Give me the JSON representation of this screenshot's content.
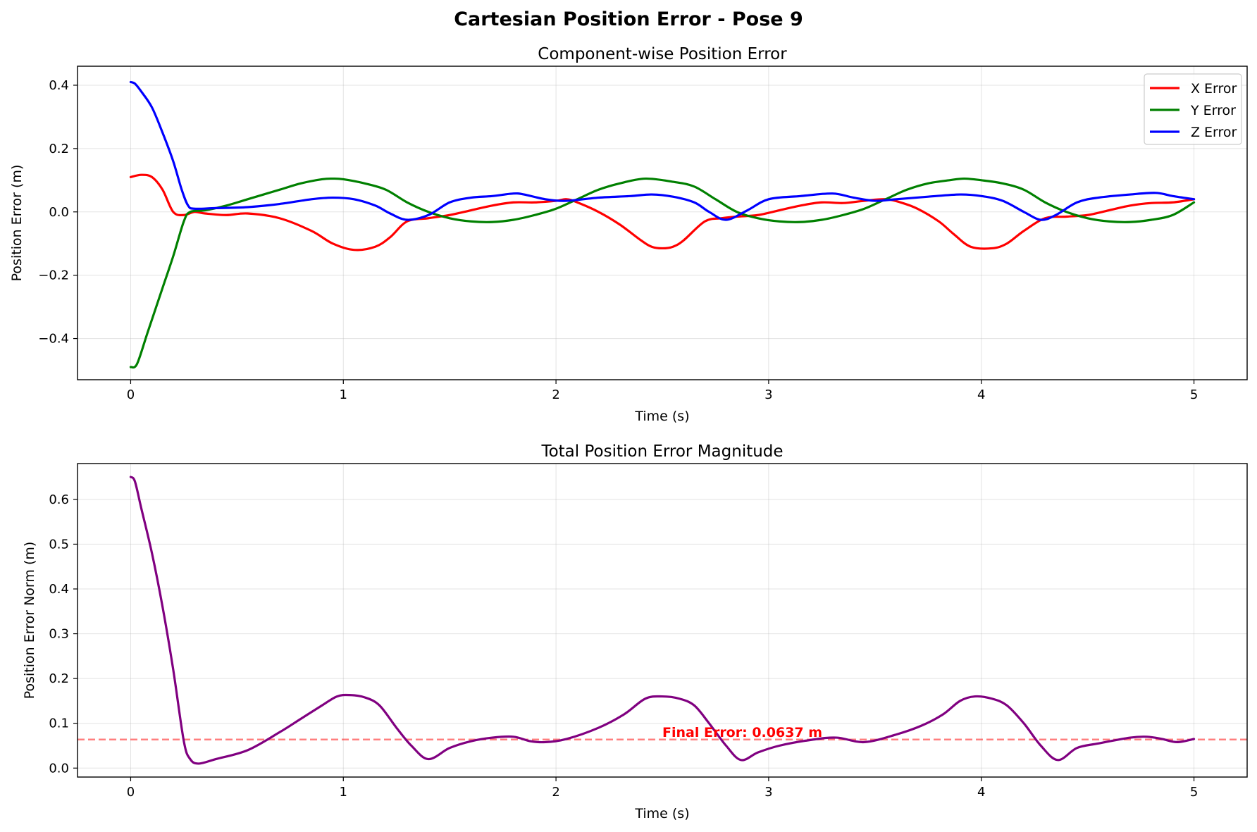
{
  "figure_title": "Cartesian Position Error - Pose 9",
  "chart_data": [
    {
      "type": "line",
      "title": "Component-wise Position Error",
      "xlabel": "Time (s)",
      "ylabel": "Position Error (m)",
      "xlim": [
        -0.25,
        5.25
      ],
      "ylim": [
        -0.53,
        0.46
      ],
      "xticks": [
        0,
        1,
        2,
        3,
        4,
        5
      ],
      "xtick_labels": [
        "0",
        "1",
        "2",
        "3",
        "4",
        "5"
      ],
      "yticks": [
        -0.4,
        -0.2,
        0.0,
        0.2,
        0.4
      ],
      "ytick_labels": [
        "−0.4",
        "−0.2",
        "0.0",
        "0.2",
        "0.4"
      ],
      "grid": true,
      "legend_position": "top-right",
      "series": [
        {
          "name": "X Error",
          "color": "#ff0000",
          "x": [
            0,
            0.05,
            0.1,
            0.15,
            0.2,
            0.25,
            0.3,
            0.35,
            0.45,
            0.55,
            0.7,
            0.85,
            0.95,
            1.05,
            1.15,
            1.22,
            1.3,
            1.4,
            1.5,
            1.6,
            1.7,
            1.8,
            1.9,
            2.0,
            2.05,
            2.1,
            2.2,
            2.3,
            2.4,
            2.45,
            2.5,
            2.55,
            2.6,
            2.7,
            2.78,
            2.85,
            2.95,
            3.05,
            3.15,
            3.25,
            3.35,
            3.45,
            3.55,
            3.62,
            3.7,
            3.8,
            3.87,
            3.95,
            4.05,
            4.12,
            4.2,
            4.3,
            4.4,
            4.5,
            4.6,
            4.7,
            4.8,
            4.9,
            5.0
          ],
          "y": [
            0.11,
            0.117,
            0.11,
            0.07,
            0.0,
            -0.01,
            0.0,
            -0.005,
            -0.01,
            -0.005,
            -0.02,
            -0.06,
            -0.1,
            -0.12,
            -0.11,
            -0.08,
            -0.03,
            -0.02,
            -0.01,
            0.005,
            0.02,
            0.03,
            0.03,
            0.035,
            0.04,
            0.03,
            0.0,
            -0.04,
            -0.09,
            -0.11,
            -0.115,
            -0.11,
            -0.09,
            -0.03,
            -0.02,
            -0.015,
            -0.01,
            0.005,
            0.02,
            0.03,
            0.028,
            0.035,
            0.04,
            0.03,
            0.01,
            -0.03,
            -0.07,
            -0.11,
            -0.115,
            -0.1,
            -0.06,
            -0.02,
            -0.015,
            -0.01,
            0.005,
            0.02,
            0.028,
            0.03,
            0.04
          ]
        },
        {
          "name": "Y Error",
          "color": "#008000",
          "x": [
            0,
            0.03,
            0.08,
            0.15,
            0.2,
            0.25,
            0.28,
            0.35,
            0.45,
            0.55,
            0.7,
            0.8,
            0.9,
            0.95,
            1.0,
            1.1,
            1.2,
            1.3,
            1.4,
            1.5,
            1.6,
            1.7,
            1.8,
            1.9,
            2.0,
            2.1,
            2.2,
            2.3,
            2.42,
            2.55,
            2.65,
            2.75,
            2.85,
            2.95,
            3.05,
            3.15,
            3.25,
            3.35,
            3.45,
            3.55,
            3.65,
            3.75,
            3.85,
            3.92,
            4.0,
            4.1,
            4.2,
            4.3,
            4.4,
            4.5,
            4.6,
            4.7,
            4.8,
            4.9,
            5.0
          ],
          "y": [
            -0.49,
            -0.48,
            -0.38,
            -0.24,
            -0.14,
            -0.03,
            0.0,
            0.005,
            0.02,
            0.04,
            0.07,
            0.09,
            0.103,
            0.105,
            0.103,
            0.09,
            0.07,
            0.03,
            0.0,
            -0.02,
            -0.03,
            -0.032,
            -0.025,
            -0.01,
            0.01,
            0.04,
            0.07,
            0.09,
            0.105,
            0.095,
            0.08,
            0.04,
            0.0,
            -0.02,
            -0.03,
            -0.032,
            -0.025,
            -0.01,
            0.01,
            0.04,
            0.07,
            0.09,
            0.1,
            0.105,
            0.1,
            0.09,
            0.07,
            0.03,
            0.0,
            -0.02,
            -0.03,
            -0.032,
            -0.025,
            -0.01,
            0.03
          ]
        },
        {
          "name": "Z Error",
          "color": "#0000ff",
          "x": [
            0,
            0.02,
            0.05,
            0.1,
            0.15,
            0.2,
            0.24,
            0.27,
            0.3,
            0.4,
            0.55,
            0.7,
            0.85,
            0.95,
            1.05,
            1.15,
            1.22,
            1.3,
            1.4,
            1.5,
            1.6,
            1.7,
            1.8,
            1.85,
            1.95,
            2.05,
            2.2,
            2.35,
            2.45,
            2.55,
            2.65,
            2.72,
            2.8,
            2.9,
            3.0,
            3.15,
            3.3,
            3.4,
            3.5,
            3.6,
            3.75,
            3.9,
            4.0,
            4.1,
            4.2,
            4.28,
            4.35,
            4.45,
            4.55,
            4.7,
            4.82,
            4.9,
            5.0
          ],
          "y": [
            0.41,
            0.405,
            0.38,
            0.33,
            0.25,
            0.16,
            0.07,
            0.02,
            0.01,
            0.012,
            0.015,
            0.025,
            0.04,
            0.045,
            0.04,
            0.02,
            -0.005,
            -0.025,
            -0.01,
            0.03,
            0.045,
            0.05,
            0.058,
            0.055,
            0.04,
            0.035,
            0.045,
            0.05,
            0.055,
            0.048,
            0.03,
            0.0,
            -0.025,
            0.005,
            0.04,
            0.05,
            0.058,
            0.045,
            0.035,
            0.04,
            0.048,
            0.055,
            0.05,
            0.035,
            0.0,
            -0.025,
            -0.01,
            0.03,
            0.045,
            0.055,
            0.06,
            0.05,
            0.04
          ]
        }
      ]
    },
    {
      "type": "line",
      "title": "Total Position Error Magnitude",
      "xlabel": "Time (s)",
      "ylabel": "Position Error Norm (m)",
      "xlim": [
        -0.25,
        5.25
      ],
      "ylim": [
        -0.02,
        0.68
      ],
      "xticks": [
        0,
        1,
        2,
        3,
        4,
        5
      ],
      "xtick_labels": [
        "0",
        "1",
        "2",
        "3",
        "4",
        "5"
      ],
      "yticks": [
        0.0,
        0.1,
        0.2,
        0.3,
        0.4,
        0.5,
        0.6
      ],
      "ytick_labels": [
        "0.0",
        "0.1",
        "0.2",
        "0.3",
        "0.4",
        "0.5",
        "0.6"
      ],
      "grid": true,
      "series": [
        {
          "color": "#800080",
          "x": [
            0,
            0.02,
            0.05,
            0.1,
            0.15,
            0.2,
            0.25,
            0.28,
            0.32,
            0.4,
            0.55,
            0.7,
            0.8,
            0.9,
            0.97,
            1.03,
            1.1,
            1.17,
            1.25,
            1.32,
            1.4,
            1.5,
            1.6,
            1.7,
            1.8,
            1.88,
            1.95,
            2.05,
            2.2,
            2.32,
            2.42,
            2.5,
            2.58,
            2.65,
            2.72,
            2.8,
            2.87,
            2.95,
            3.05,
            3.2,
            3.32,
            3.45,
            3.6,
            3.72,
            3.82,
            3.9,
            3.97,
            4.05,
            4.12,
            4.2,
            4.28,
            4.36,
            4.45,
            4.55,
            4.7,
            4.78,
            4.85,
            4.92,
            5.0
          ],
          "y": [
            0.65,
            0.64,
            0.58,
            0.48,
            0.36,
            0.22,
            0.06,
            0.02,
            0.01,
            0.02,
            0.04,
            0.08,
            0.11,
            0.14,
            0.16,
            0.163,
            0.158,
            0.14,
            0.09,
            0.05,
            0.02,
            0.045,
            0.06,
            0.068,
            0.07,
            0.06,
            0.058,
            0.065,
            0.09,
            0.12,
            0.155,
            0.16,
            0.155,
            0.14,
            0.1,
            0.05,
            0.018,
            0.035,
            0.05,
            0.063,
            0.068,
            0.058,
            0.075,
            0.095,
            0.12,
            0.15,
            0.16,
            0.155,
            0.14,
            0.1,
            0.05,
            0.018,
            0.045,
            0.055,
            0.068,
            0.07,
            0.065,
            0.058,
            0.065
          ]
        }
      ],
      "reference_line": {
        "y": 0.0637,
        "color": "#ff0000",
        "style": "dashed"
      },
      "annotation": {
        "text": "Final Error: 0.0637 m",
        "x": 2.5,
        "y": 0.0637,
        "color": "#ff0000"
      }
    }
  ]
}
